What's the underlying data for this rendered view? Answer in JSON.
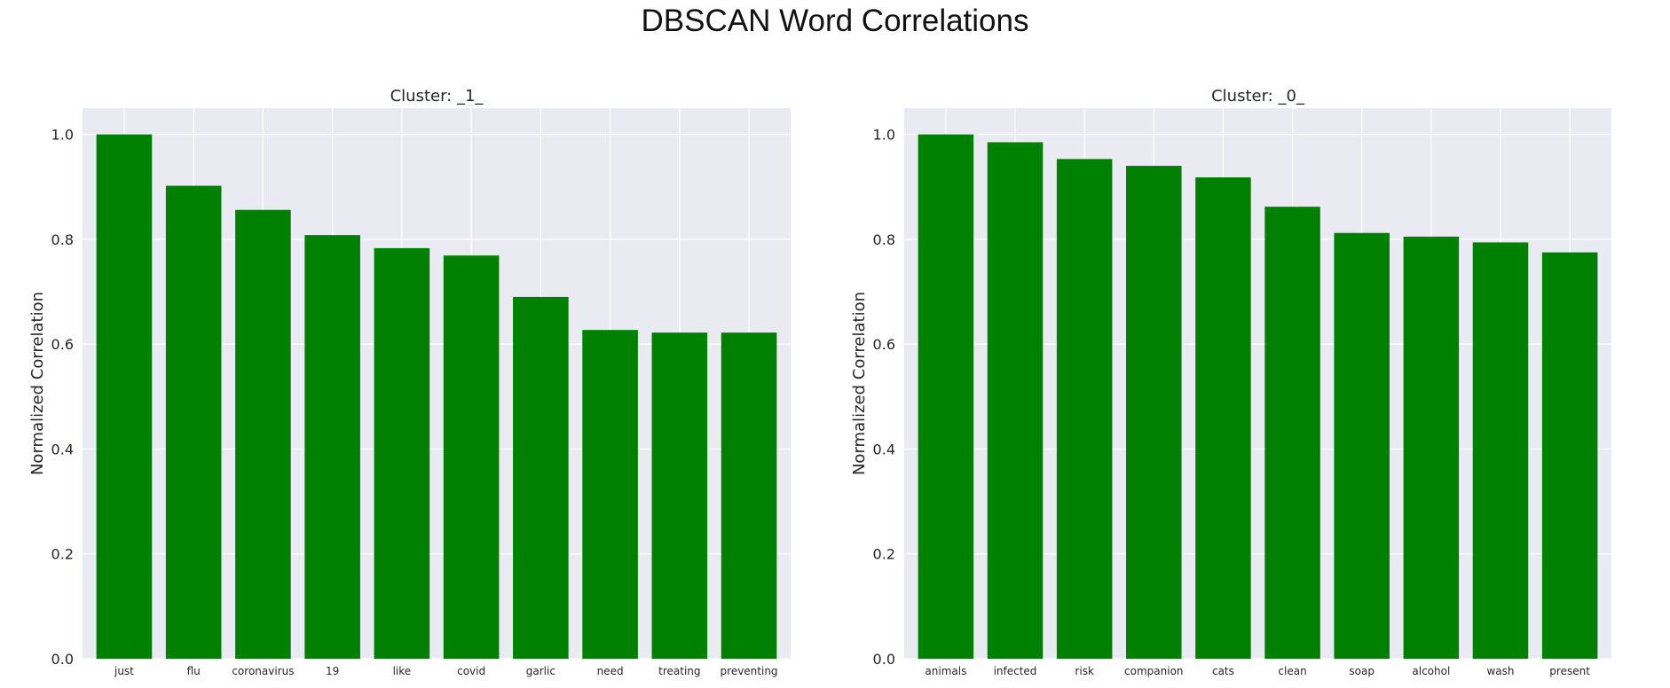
{
  "figure": {
    "title": "DBSCAN Word Correlations"
  },
  "chart_data": [
    {
      "type": "bar",
      "title": "Cluster: _1_",
      "xlabel": "",
      "ylabel": "Normalized Correlation",
      "ylim": [
        0,
        1.05
      ],
      "yticks": [
        0.0,
        0.2,
        0.4,
        0.6,
        0.8,
        1.0
      ],
      "ytick_labels": [
        "0.0",
        "0.2",
        "0.4",
        "0.6",
        "0.8",
        "1.0"
      ],
      "grid": true,
      "categories": [
        "just",
        "flu",
        "coronavirus",
        "19",
        "like",
        "covid",
        "garlic",
        "need",
        "treating",
        "preventing"
      ],
      "values": [
        1.0,
        0.902,
        0.856,
        0.808,
        0.783,
        0.769,
        0.69,
        0.627,
        0.622,
        0.622
      ],
      "color": "#008000"
    },
    {
      "type": "bar",
      "title": "Cluster: _0_",
      "xlabel": "",
      "ylabel": "Normalized Correlation",
      "ylim": [
        0,
        1.05
      ],
      "yticks": [
        0.0,
        0.2,
        0.4,
        0.6,
        0.8,
        1.0
      ],
      "ytick_labels": [
        "0.0",
        "0.2",
        "0.4",
        "0.6",
        "0.8",
        "1.0"
      ],
      "grid": true,
      "categories": [
        "animals",
        "infected",
        "risk",
        "companion",
        "cats",
        "clean",
        "soap",
        "alcohol",
        "wash",
        "present"
      ],
      "values": [
        1.0,
        0.985,
        0.953,
        0.94,
        0.918,
        0.862,
        0.812,
        0.805,
        0.794,
        0.775
      ],
      "color": "#008000"
    }
  ]
}
